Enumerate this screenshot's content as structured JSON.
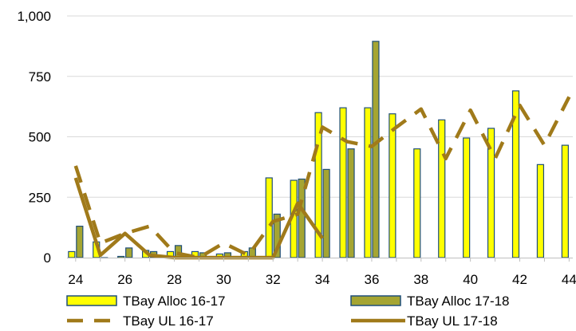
{
  "chart_data": {
    "type": "bar",
    "x": [
      24,
      25,
      26,
      27,
      28,
      29,
      30,
      31,
      32,
      33,
      34,
      35,
      36,
      37,
      38,
      39,
      40,
      41,
      42,
      43,
      44
    ],
    "xticks": [
      "24",
      "26",
      "28",
      "30",
      "32",
      "34",
      "36",
      "38",
      "40",
      "42",
      "44"
    ],
    "yticks": [
      "0",
      "250",
      "500",
      "750",
      "1,000"
    ],
    "ylim": [
      0,
      1000
    ],
    "grid": "horizontal",
    "legend": "bottom",
    "series": [
      {
        "name": "TBay Alloc 16-17",
        "kind": "bar",
        "color": "#FFFF00",
        "edge": "#1F4E79",
        "values": [
          25,
          65,
          5,
          30,
          25,
          25,
          15,
          25,
          330,
          320,
          600,
          620,
          620,
          595,
          450,
          570,
          495,
          535,
          690,
          385,
          465
        ]
      },
      {
        "name": "TBay Alloc 17-18",
        "kind": "bar",
        "color": "#A5A532",
        "edge": "#1F4E79",
        "values": [
          130,
          0,
          40,
          25,
          50,
          20,
          20,
          40,
          180,
          325,
          365,
          450,
          895,
          null,
          null,
          null,
          null,
          null,
          null,
          null,
          null
        ]
      },
      {
        "name": "TBay UL 16-17",
        "kind": "line",
        "style": "dashed",
        "color": "#A07A1A",
        "values": [
          380,
          60,
          100,
          130,
          20,
          0,
          60,
          10,
          150,
          180,
          540,
          480,
          460,
          540,
          615,
          410,
          610,
          410,
          630,
          465,
          665
        ]
      },
      {
        "name": "TBay UL 17-18",
        "kind": "line",
        "style": "solid",
        "color": "#A07A1A",
        "values": [
          330,
          10,
          100,
          10,
          0,
          0,
          0,
          0,
          0,
          225,
          80,
          null,
          null,
          null,
          null,
          null,
          null,
          null,
          null,
          null,
          null
        ]
      }
    ]
  }
}
